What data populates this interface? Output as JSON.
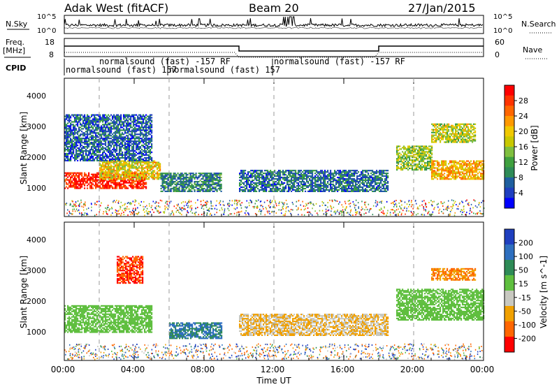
{
  "header": {
    "station": "Adak West (fitACF)",
    "beam": "Beam 20",
    "date": "27/Jan/2015"
  },
  "top_panels": {
    "nsky_label": "N.Sky",
    "nsky_ticks_left": [
      "10^5",
      "10^0"
    ],
    "nsearch_label": "N.Search",
    "nsearch_ticks_right": [
      "10^5",
      "10^0"
    ],
    "freq_label_1": "Freq.",
    "freq_label_2": "[MHz]",
    "freq_ticks_left": [
      "18",
      "8"
    ],
    "nave_label": "Nave",
    "nave_ticks_right": [
      "60",
      "0"
    ],
    "cpid_label": "CPID",
    "cpid_entries": [
      "normalsound (fast) 157",
      "normalsound (fast) -157 RF",
      "normalsound (fast) 157",
      "normalsound (fast) -157 RF"
    ]
  },
  "power_panel": {
    "ylabel": "Slant Range [km]",
    "yticks": [
      "4000",
      "3000",
      "2000",
      "1000"
    ],
    "colorbar_label": "Power [dB]",
    "colorbar_ticks": [
      "28",
      "24",
      "20",
      "16",
      "12",
      "8",
      "4"
    ],
    "colorbar_colors": [
      "#ff0000",
      "#ff3300",
      "#ff6600",
      "#ff9900",
      "#f0c800",
      "#c8c800",
      "#7fbf3f",
      "#3fa03f",
      "#2e8b57",
      "#1f5f9f",
      "#1f3fbf",
      "#0000ff"
    ]
  },
  "velocity_panel": {
    "ylabel": "Slant Range [km]",
    "yticks": [
      "4000",
      "3000",
      "2000",
      "1000"
    ],
    "colorbar_label": "Velocity [m s^-1]",
    "colorbar_ticks": [
      "200",
      "100",
      "50",
      "15",
      "-15",
      "-50",
      "-100",
      "-200"
    ],
    "colorbar_colors": [
      "#1f3fbf",
      "#2e6fbf",
      "#2e8b57",
      "#5fbf3f",
      "#c8c8c0",
      "#f0a000",
      "#ff6600",
      "#ff0000"
    ]
  },
  "xaxis": {
    "label": "Time UT",
    "ticks": [
      "00:00",
      "04:00",
      "08:00",
      "12:00",
      "16:00",
      "20:00",
      "00:00"
    ]
  },
  "chart_data": [
    {
      "type": "heatmap",
      "title": "Power",
      "xlabel": "Time UT",
      "ylabel": "Slant Range [km]",
      "xlim": [
        0,
        24
      ],
      "ylim": [
        0,
        4500
      ],
      "colorbar_range": [
        0,
        30
      ],
      "regions": [
        {
          "t0": 0.0,
          "t1": 4.7,
          "r0": 900,
          "r1": 1400,
          "value": 28
        },
        {
          "t0": 2.0,
          "t1": 5.5,
          "r0": 1200,
          "r1": 1800,
          "value": 18
        },
        {
          "t0": 0.0,
          "t1": 5.0,
          "r0": 1800,
          "r1": 3300,
          "value": 6
        },
        {
          "t0": 5.5,
          "t1": 9.0,
          "r0": 800,
          "r1": 1400,
          "value": 8
        },
        {
          "t0": 10.0,
          "t1": 18.5,
          "r0": 800,
          "r1": 1500,
          "value": 7
        },
        {
          "t0": 19.0,
          "t1": 21.0,
          "r0": 1500,
          "r1": 2300,
          "value": 14
        },
        {
          "t0": 21.0,
          "t1": 24.0,
          "r0": 1200,
          "r1": 1800,
          "value": 20
        },
        {
          "t0": 21.0,
          "t1": 23.5,
          "r0": 2400,
          "r1": 3000,
          "value": 16
        }
      ]
    },
    {
      "type": "heatmap",
      "title": "Velocity",
      "xlabel": "Time UT",
      "ylabel": "Slant Range [km]",
      "xlim": [
        0,
        24
      ],
      "ylim": [
        0,
        4500
      ],
      "colorbar_range": [
        -200,
        200
      ],
      "regions": [
        {
          "t0": 0.0,
          "t1": 5.0,
          "r0": 900,
          "r1": 1800,
          "value": 0
        },
        {
          "t0": 3.0,
          "t1": 4.5,
          "r0": 2500,
          "r1": 3400,
          "value": -200
        },
        {
          "t0": 6.0,
          "t1": 9.0,
          "r0": 700,
          "r1": 1200,
          "value": 50
        },
        {
          "t0": 10.0,
          "t1": 18.5,
          "r0": 800,
          "r1": 1500,
          "value": -50
        },
        {
          "t0": 19.0,
          "t1": 24.0,
          "r0": 1300,
          "r1": 2300,
          "value": 0
        },
        {
          "t0": 21.0,
          "t1": 23.5,
          "r0": 2600,
          "r1": 3000,
          "value": -100
        }
      ]
    }
  ]
}
